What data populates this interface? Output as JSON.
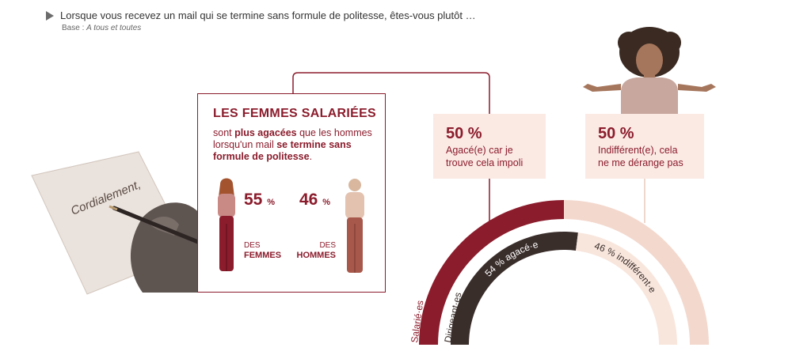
{
  "header": {
    "question": "Lorsque vous recevez un mail qui se termine sans formule de politesse, êtes-vous plutôt …",
    "base_prefix": "Base : ",
    "base_value": "A tous et toutes"
  },
  "letter": {
    "handwriting": "Cordialement,"
  },
  "women_card": {
    "title": "LES FEMMES SALARIÉES",
    "text_1": "sont ",
    "text_2": "plus agacées",
    "text_3": " que les hommes lorsqu'un mail ",
    "text_4": "se termine sans formule de politesse",
    "text_5": ".",
    "women_value": "55",
    "men_value": "46",
    "unit": "%",
    "women_label_top": "DES",
    "women_label_bottom": "FEMMES",
    "men_label_top": "DES",
    "men_label_bottom": "HOMMES"
  },
  "boxes": {
    "annoyed": {
      "pct": "50 %",
      "text_1": "Agacé(e) car je",
      "text_2": "trouve cela impoli"
    },
    "indifferent": {
      "pct": "50 %",
      "text_1": "Indifférent(e), cela",
      "text_2": "ne me dérange pas"
    }
  },
  "chart_data": {
    "type": "pie",
    "style": "concentric half-donut",
    "series": [
      {
        "name": "Salarié·es",
        "values": [
          50,
          50
        ]
      },
      {
        "name": "Dirigeant·es",
        "values": [
          54,
          46
        ]
      }
    ],
    "categories": [
      "agacé·e",
      "indifférent·e"
    ],
    "labels": {
      "outer_agace": "",
      "inner_agace": "54 % agacé·e",
      "inner_indiff": "46 % indifférent·e"
    },
    "colors": {
      "outer_agace": "#8b1c2c",
      "outer_indiff": "#f3d8cd",
      "inner_agace": "#3a2e2b",
      "inner_indiff": "#f8e6dd"
    }
  },
  "colors": {
    "accent": "#8b1c2c",
    "pink": "#fbeae4"
  }
}
